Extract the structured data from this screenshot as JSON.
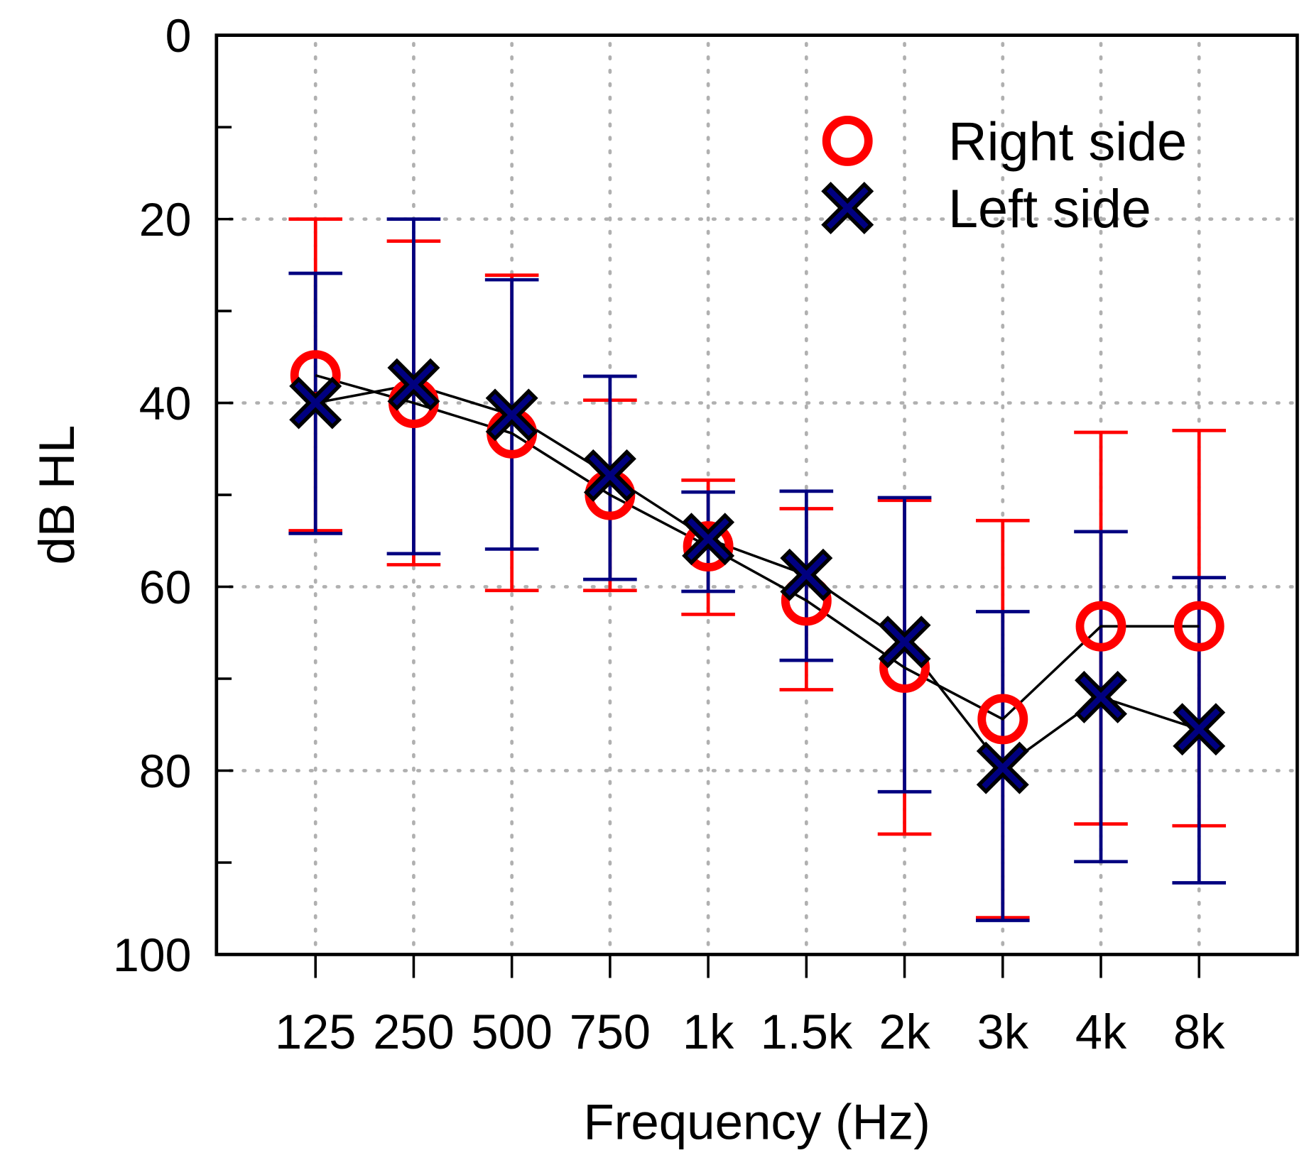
{
  "chart_data": {
    "type": "line",
    "title": "",
    "xlabel": "Frequency (Hz)",
    "ylabel": "dB HL",
    "categories": [
      "125",
      "250",
      "500",
      "750",
      "1k",
      "1.5k",
      "2k",
      "3k",
      "4k",
      "8k"
    ],
    "ylim": [
      0,
      100
    ],
    "y_inverted": true,
    "yticks": [
      0,
      20,
      40,
      60,
      80,
      100
    ],
    "yminor": [
      10,
      30,
      50,
      70,
      90
    ],
    "grid": true,
    "legend_position": "top-right",
    "series": [
      {
        "name": "Right side",
        "marker": "circle",
        "color": "#ff0000",
        "values": [
          37,
          40,
          43.3,
          50,
          55.6,
          61.5,
          68.8,
          74.4,
          64.3,
          64.3
        ],
        "err_low": [
          20,
          22.4,
          26.1,
          39.7,
          48.4,
          51.5,
          50.6,
          52.8,
          43.2,
          43
        ],
        "err_high": [
          53.9,
          57.6,
          60.4,
          60.4,
          63,
          71.2,
          86.9,
          96,
          85.8,
          86
        ]
      },
      {
        "name": "Left side",
        "marker": "x",
        "color": "#000080",
        "values": [
          40,
          38,
          41.3,
          47.9,
          54.8,
          58.7,
          66,
          79.7,
          72,
          75.5
        ],
        "err_low": [
          25.9,
          20,
          26.6,
          37.1,
          49.7,
          49.6,
          50.3,
          62.7,
          54,
          59
        ],
        "err_high": [
          54.2,
          56.4,
          55.9,
          59.2,
          60.5,
          68,
          82.3,
          96.3,
          89.9,
          92.2
        ]
      }
    ]
  }
}
